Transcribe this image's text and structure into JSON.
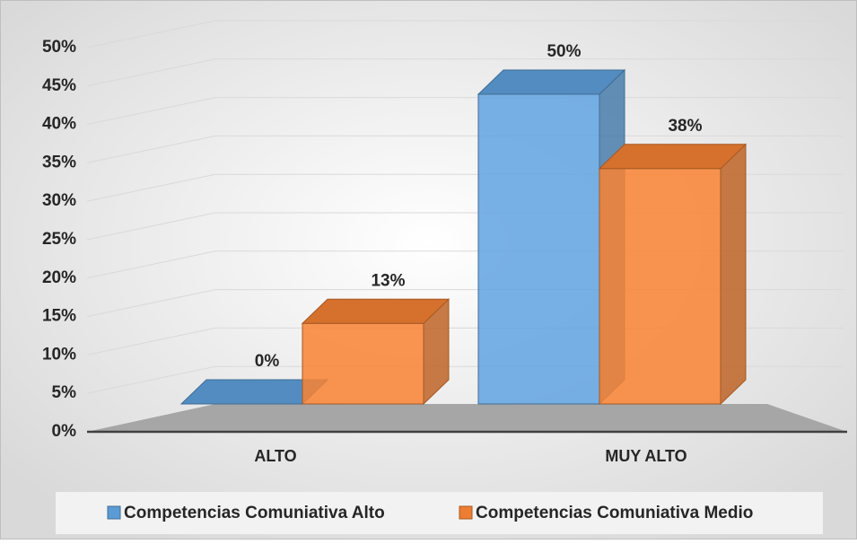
{
  "chart_data": {
    "type": "bar3d",
    "categories": [
      "ALTO",
      "MUY ALTO"
    ],
    "series": [
      {
        "name": "Competencias Comuniativa Alto",
        "color": "#5b9bd5",
        "values": [
          0,
          50
        ],
        "value_labels": [
          "0%",
          "50%"
        ]
      },
      {
        "name": "Competencias Comuniativa Medio",
        "color": "#ed7d31",
        "values": [
          13,
          38
        ],
        "value_labels": [
          "13%",
          "38%"
        ]
      }
    ],
    "ylim": [
      0,
      50
    ],
    "yticks": [
      {
        "value": 0,
        "label": "0%"
      },
      {
        "value": 5,
        "label": "5%"
      },
      {
        "value": 10,
        "label": "10%"
      },
      {
        "value": 15,
        "label": "15%"
      },
      {
        "value": 20,
        "label": "20%"
      },
      {
        "value": 25,
        "label": "25%"
      },
      {
        "value": 30,
        "label": "30%"
      },
      {
        "value": 35,
        "label": "35%"
      },
      {
        "value": 40,
        "label": "40%"
      },
      {
        "value": 45,
        "label": "45%"
      },
      {
        "value": 50,
        "label": "50%"
      }
    ],
    "grid": true,
    "legend": "bottom"
  }
}
